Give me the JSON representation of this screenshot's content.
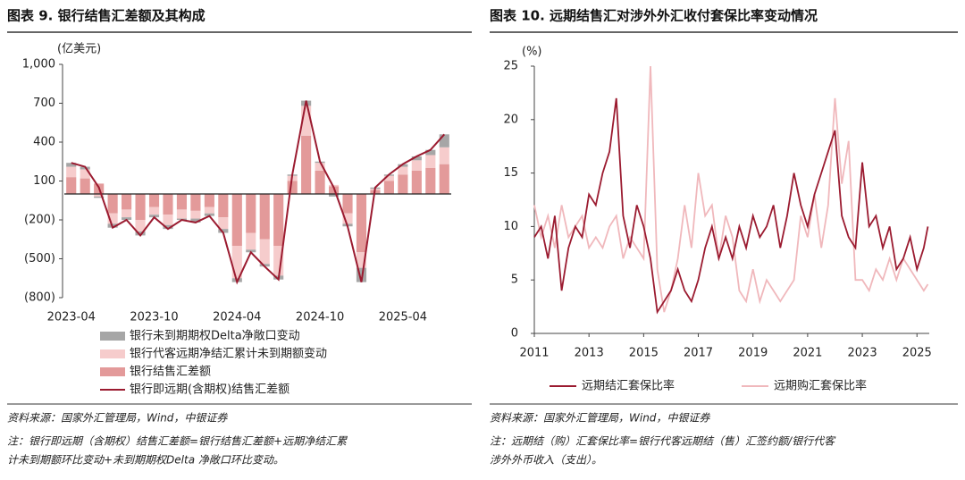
{
  "chart_data": [
    {
      "type": "bar",
      "stacked": true,
      "title": "图表 9. 银行结售汇差额及其构成",
      "unit": "(亿美元)",
      "categories": [
        "2023-04",
        null,
        null,
        null,
        null,
        null,
        "2023-10",
        null,
        null,
        null,
        null,
        null,
        "2024-04",
        null,
        null,
        null,
        null,
        null,
        "2024-10",
        null,
        null,
        null,
        null,
        null,
        "2025-04",
        null,
        null,
        null
      ],
      "ylim": [
        -800,
        1000
      ],
      "yticks": [
        {
          "value": 1000,
          "label": "1,000"
        },
        700,
        400,
        100,
        {
          "value": -200,
          "label": "(200)"
        },
        {
          "value": -500,
          "label": "(500)"
        },
        {
          "value": -800,
          "label": "(800)"
        }
      ],
      "negative_label_color": "#c00000",
      "series": [
        {
          "name": "银行未到期期权Delta净敞口变动",
          "color": "#a6a6a6",
          "values": [
            30,
            20,
            -10,
            -30,
            -20,
            -30,
            -20,
            -30,
            -10,
            -30,
            -20,
            -30,
            -30,
            -20,
            -20,
            -30,
            10,
            40,
            10,
            -20,
            -20,
            -110,
            10,
            10,
            20,
            30,
            40,
            100
          ]
        },
        {
          "name": "银行代客远期净结汇累计未到期额变动",
          "color": "#f6cccc",
          "values": [
            80,
            70,
            -20,
            -80,
            -60,
            -90,
            -60,
            -80,
            -70,
            -60,
            -50,
            -90,
            -250,
            -130,
            -190,
            -230,
            40,
            230,
            60,
            10,
            -80,
            -120,
            10,
            40,
            60,
            80,
            100,
            130
          ]
        },
        {
          "name": "银行结售汇差额",
          "color": "#e39a9a",
          "values": [
            130,
            120,
            80,
            -150,
            -120,
            -200,
            -100,
            -160,
            -120,
            -130,
            -100,
            -180,
            -400,
            -300,
            -350,
            -400,
            100,
            450,
            180,
            60,
            -150,
            -450,
            30,
            100,
            150,
            180,
            200,
            230
          ]
        },
        {
          "name": "银行即远期(含期权)结售汇差额",
          "type": "line",
          "color": "#9b1b30",
          "values": [
            240,
            210,
            50,
            -260,
            -200,
            -320,
            -180,
            -270,
            -200,
            -220,
            -170,
            -300,
            -680,
            -450,
            -560,
            -660,
            150,
            720,
            250,
            50,
            -250,
            -680,
            50,
            150,
            230,
            290,
            340,
            460
          ]
        }
      ],
      "source": "资料来源：国家外汇管理局，Wind，中银证券",
      "note": [
        "注：银行即远期（含期权）结售汇差额=银行结售汇差额+远期净结汇累",
        "计未到期额环比变动+未到期期权Delta 净敞口环比变动。"
      ]
    },
    {
      "type": "line",
      "title": "图表 10. 远期结售汇对涉外外汇收付套保比率变动情况",
      "unit": "(%)",
      "x": [
        2011,
        2011.25,
        2011.5,
        2011.75,
        2012,
        2012.25,
        2012.5,
        2012.75,
        2013,
        2013.25,
        2013.5,
        2013.75,
        2014,
        2014.25,
        2014.5,
        2014.75,
        2015,
        2015.25,
        2015.5,
        2015.75,
        2016,
        2016.25,
        2016.5,
        2016.75,
        2017,
        2017.25,
        2017.5,
        2017.75,
        2018,
        2018.25,
        2018.5,
        2018.75,
        2019,
        2019.25,
        2019.5,
        2019.75,
        2020,
        2020.25,
        2020.5,
        2020.75,
        2021,
        2021.25,
        2021.5,
        2021.75,
        2022,
        2022.25,
        2022.5,
        2022.75,
        2023,
        2023.25,
        2023.5,
        2023.75,
        2024,
        2024.25,
        2024.5,
        2024.75,
        2025,
        2025.25,
        2025.4
      ],
      "xlim": [
        2011,
        2025.45
      ],
      "xticks": [
        2011,
        2013,
        2015,
        2017,
        2019,
        2021,
        2023,
        2025
      ],
      "ylim": [
        0,
        25
      ],
      "yticks": [
        0,
        5,
        10,
        15,
        20,
        25
      ],
      "series": [
        {
          "name": "远期结汇套保比率",
          "color": "#9b1b30",
          "values": [
            9,
            10,
            7,
            11,
            4,
            8,
            10,
            9,
            13,
            12,
            15,
            17,
            22,
            11,
            8,
            12,
            10,
            7,
            2,
            3,
            4,
            6,
            4,
            3,
            5,
            8,
            10,
            7,
            9,
            7,
            10,
            8,
            11,
            9,
            10,
            12,
            8,
            11,
            15,
            12,
            10,
            13,
            15,
            17,
            19,
            11,
            9,
            8,
            16,
            10,
            11,
            8,
            10,
            6,
            7,
            9,
            6,
            8,
            10
          ]
        },
        {
          "name": "远期购汇套保比率",
          "color": "#f0b8bc",
          "values": [
            12,
            9,
            11,
            8,
            12,
            9,
            10,
            11,
            8,
            9,
            8,
            10,
            11,
            7,
            9,
            8,
            7,
            25,
            6,
            2,
            4,
            7,
            12,
            8,
            15,
            11,
            12,
            7,
            11,
            9,
            4,
            3,
            6,
            3,
            5,
            4,
            3,
            4,
            5,
            11,
            9,
            13,
            8,
            12,
            22,
            14,
            18,
            5,
            5,
            4,
            6,
            5,
            7,
            5,
            7,
            6,
            5,
            4,
            4.6
          ]
        }
      ],
      "source": "资料来源：国家外汇管理局，Wind，中银证券",
      "note": [
        "注：远期结（购）汇套保比率=银行代客远期结（售）汇签约额/银行代客",
        "涉外外币收入（支出）。"
      ]
    }
  ]
}
